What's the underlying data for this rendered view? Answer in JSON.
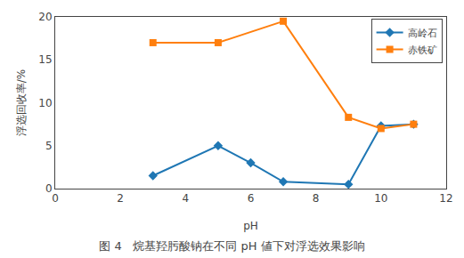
{
  "chart_data": {
    "type": "line",
    "title": "图 4   烷基羟肟酸钠在不同 pH 値下对浮选效果影响",
    "x_label": "pH",
    "y_label": "浮选回收率/%",
    "series": [
      {
        "name": "高岭石",
        "marker": "diamond",
        "x": [
          3,
          5,
          6,
          7,
          9,
          10,
          11
        ],
        "values": [
          1.5,
          5.0,
          3.0,
          0.8,
          0.5,
          7.3,
          7.5
        ]
      },
      {
        "name": "赤铁矿",
        "marker": "square",
        "x": [
          3,
          5,
          7,
          9,
          10,
          11
        ],
        "values": [
          17.0,
          17.0,
          19.5,
          8.3,
          7.0,
          7.5
        ]
      }
    ],
    "xlim": [
      0,
      12
    ],
    "ylim": [
      0,
      20
    ],
    "xticks": [
      0,
      2,
      4,
      6,
      8,
      10,
      12
    ],
    "yticks": [
      0,
      5,
      10,
      15,
      20
    ],
    "grid": false,
    "legend": "upper right"
  }
}
